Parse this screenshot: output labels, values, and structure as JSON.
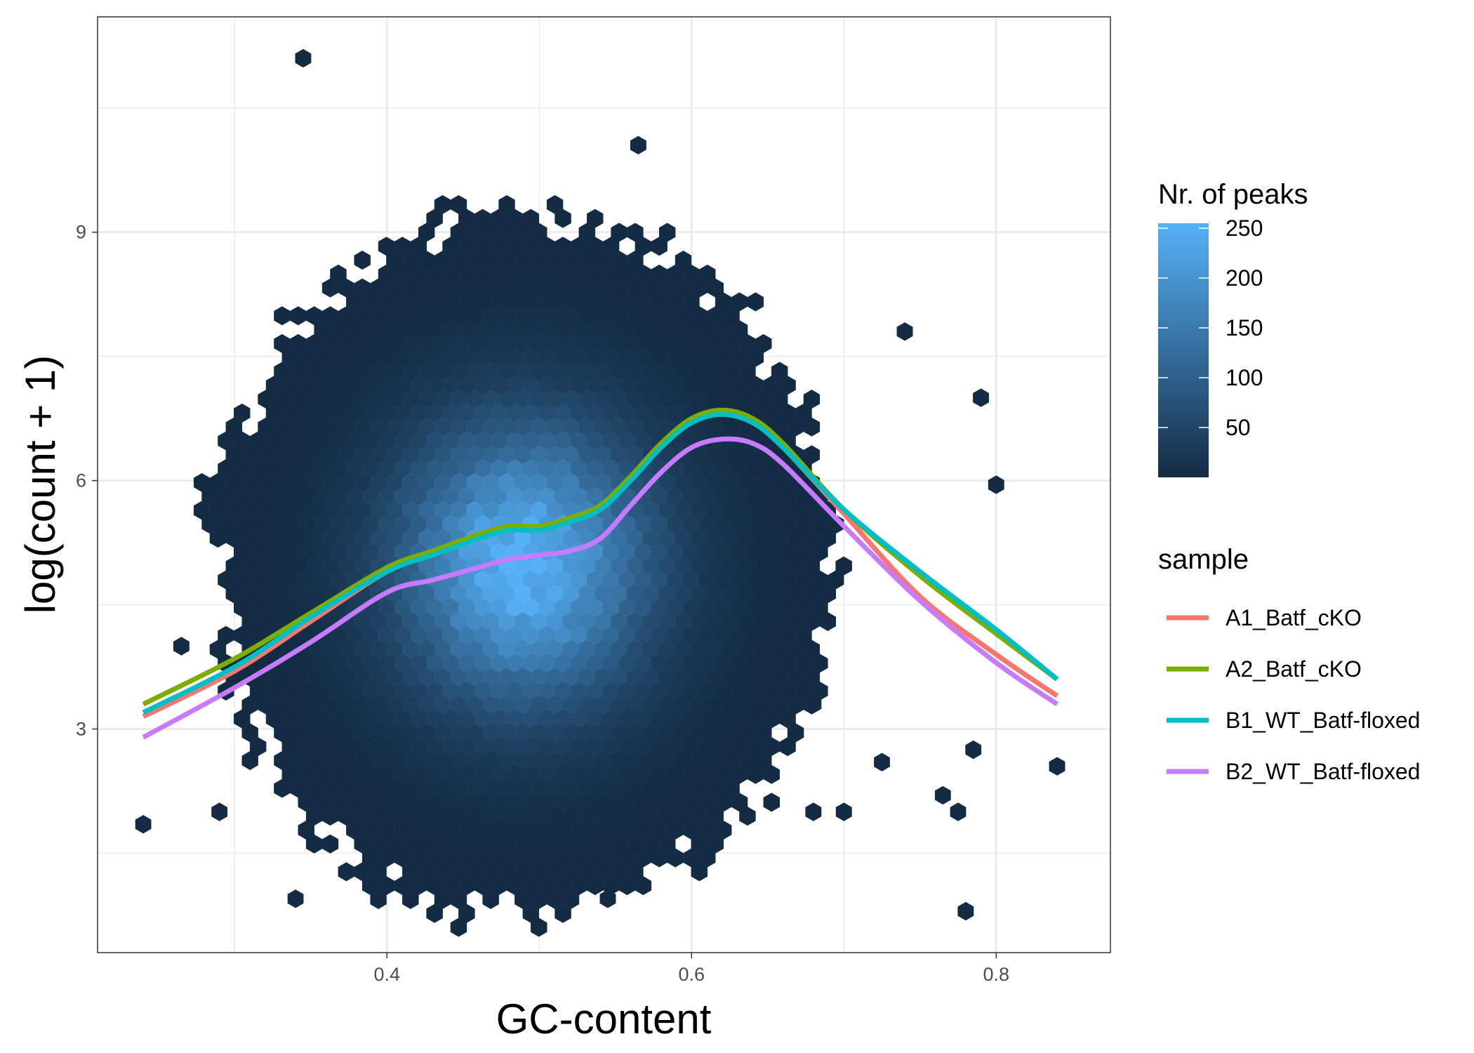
{
  "chart_data": {
    "type": "heatmap",
    "subtype": "hexbin with smoothed lines",
    "xlabel": "GC-content",
    "ylabel": "log(count + 1)",
    "xlim": [
      0.21,
      0.875
    ],
    "ylim": [
      0.3,
      11.6
    ],
    "x_ticks": [
      0.4,
      0.6,
      0.8
    ],
    "y_ticks": [
      3,
      6,
      9
    ],
    "x_tick_labels": [
      "0.4",
      "0.6",
      "0.8"
    ],
    "y_tick_labels": [
      "3",
      "6",
      "9"
    ],
    "grid": true,
    "density": {
      "center_x": 0.49,
      "center_y": 5.0,
      "max_count": 250
    },
    "fill_legend": {
      "title": "Nr. of peaks",
      "breaks": [
        "50",
        "100",
        "150",
        "200",
        "250"
      ],
      "break_values": [
        50,
        100,
        150,
        200,
        250
      ],
      "low_color": "#132B43",
      "high_color": "#56B1F7",
      "max": 255
    },
    "color_legend": {
      "title": "sample",
      "placement": "right"
    },
    "series": [
      {
        "name": "A1_Batf_cKO",
        "color": "#F8766D",
        "x": [
          0.24,
          0.3,
          0.35,
          0.4,
          0.43,
          0.46,
          0.48,
          0.5,
          0.52,
          0.54,
          0.56,
          0.58,
          0.6,
          0.62,
          0.64,
          0.66,
          0.7,
          0.75,
          0.8,
          0.84
        ],
        "y": [
          3.15,
          3.7,
          4.3,
          4.9,
          5.1,
          5.3,
          5.4,
          5.4,
          5.5,
          5.65,
          6.0,
          6.4,
          6.7,
          6.8,
          6.7,
          6.4,
          5.6,
          4.6,
          3.9,
          3.4
        ]
      },
      {
        "name": "A2_Batf_cKO",
        "color": "#7CAE00",
        "x": [
          0.24,
          0.3,
          0.35,
          0.4,
          0.43,
          0.46,
          0.48,
          0.5,
          0.52,
          0.54,
          0.56,
          0.58,
          0.6,
          0.62,
          0.64,
          0.66,
          0.7,
          0.75,
          0.8,
          0.84
        ],
        "y": [
          3.3,
          3.85,
          4.4,
          4.95,
          5.15,
          5.35,
          5.45,
          5.45,
          5.55,
          5.7,
          6.05,
          6.45,
          6.75,
          6.85,
          6.75,
          6.45,
          5.65,
          4.85,
          4.15,
          3.6
        ]
      },
      {
        "name": "B1_WT_Batf-floxed",
        "color": "#00BFC4",
        "x": [
          0.24,
          0.3,
          0.35,
          0.4,
          0.43,
          0.46,
          0.48,
          0.5,
          0.52,
          0.54,
          0.56,
          0.58,
          0.6,
          0.62,
          0.64,
          0.66,
          0.7,
          0.75,
          0.8,
          0.84
        ],
        "y": [
          3.2,
          3.75,
          4.35,
          4.9,
          5.1,
          5.3,
          5.4,
          5.4,
          5.5,
          5.65,
          6.0,
          6.4,
          6.7,
          6.8,
          6.7,
          6.4,
          5.65,
          4.9,
          4.2,
          3.6
        ]
      },
      {
        "name": "B2_WT_Batf-floxed",
        "color": "#C77CFF",
        "x": [
          0.24,
          0.3,
          0.35,
          0.4,
          0.43,
          0.46,
          0.48,
          0.5,
          0.52,
          0.54,
          0.56,
          0.58,
          0.6,
          0.62,
          0.64,
          0.66,
          0.7,
          0.75,
          0.8,
          0.84
        ],
        "y": [
          2.9,
          3.5,
          4.05,
          4.65,
          4.8,
          4.95,
          5.05,
          5.1,
          5.15,
          5.3,
          5.7,
          6.1,
          6.4,
          6.5,
          6.45,
          6.2,
          5.45,
          4.55,
          3.8,
          3.3
        ]
      }
    ],
    "outlier_hexes": [
      [
        0.345,
        11.1
      ],
      [
        0.565,
        10.05
      ],
      [
        0.24,
        1.85
      ],
      [
        0.34,
        0.95
      ],
      [
        0.78,
        0.8
      ],
      [
        0.545,
        0.95
      ],
      [
        0.84,
        2.55
      ],
      [
        0.645,
        3.3
      ],
      [
        0.68,
        3.3
      ],
      [
        0.765,
        2.2
      ],
      [
        0.29,
        2.0
      ],
      [
        0.7,
        2.0
      ],
      [
        0.725,
        2.6
      ],
      [
        0.785,
        2.75
      ],
      [
        0.8,
        5.95
      ],
      [
        0.79,
        7.0
      ],
      [
        0.74,
        7.8
      ],
      [
        0.265,
        4.0
      ],
      [
        0.775,
        2.0
      ],
      [
        0.68,
        2.0
      ]
    ]
  }
}
